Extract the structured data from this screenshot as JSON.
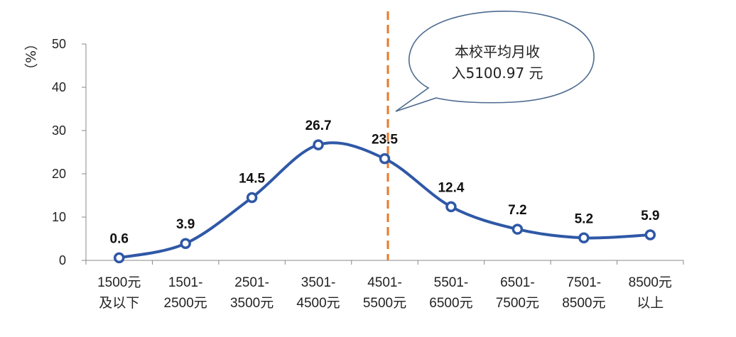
{
  "chart_data": {
    "type": "line",
    "categories": [
      [
        "1500元",
        "及以下"
      ],
      [
        "1501-",
        "2500元"
      ],
      [
        "2501-",
        "3500元"
      ],
      [
        "3501-",
        "4500元"
      ],
      [
        "4501-",
        "5500元"
      ],
      [
        "5501-",
        "6500元"
      ],
      [
        "6501-",
        "7500元"
      ],
      [
        "7501-",
        "8500元"
      ],
      [
        "8500元",
        "以上"
      ]
    ],
    "values": [
      0.6,
      3.9,
      14.5,
      26.7,
      23.5,
      12.4,
      7.2,
      5.2,
      5.9
    ],
    "value_labels": [
      "0.6",
      "3.9",
      "14.5",
      "26.7",
      "23.5",
      "12.4",
      "7.2",
      "5.2",
      "5.9"
    ],
    "ylabel": "（%）",
    "yticks": [
      "0",
      "10",
      "20",
      "30",
      "40",
      "50"
    ],
    "ylim": [
      0,
      50
    ],
    "grid": false,
    "line_color": "#2f58a6",
    "reference_line": {
      "color": "#e8792a",
      "style": "dashed"
    },
    "annotation": {
      "lines": [
        "本校平均月收",
        "入5100.97 元"
      ]
    }
  }
}
